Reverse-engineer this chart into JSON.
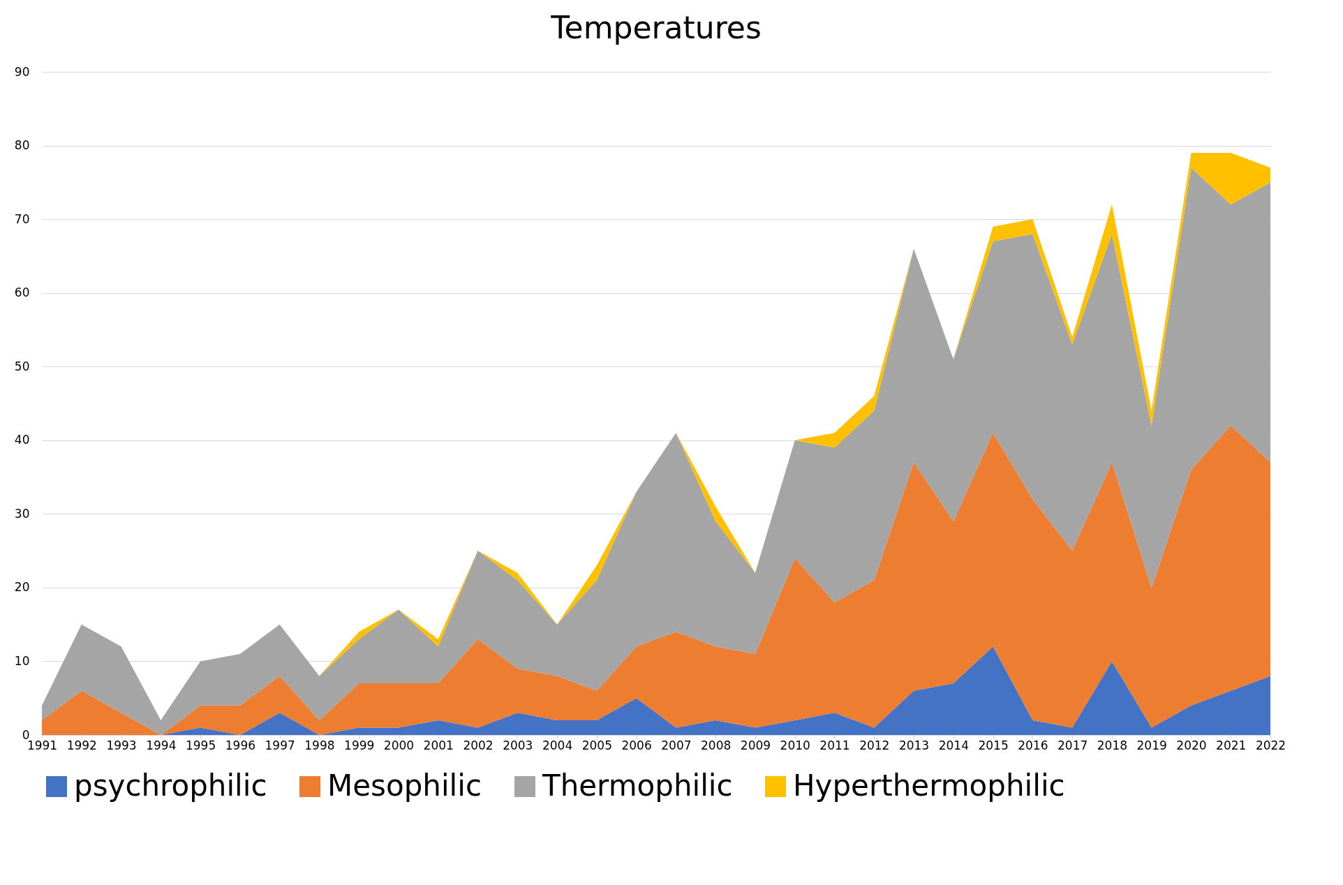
{
  "chart_data": {
    "type": "area",
    "title": "Temperatures",
    "stacked": true,
    "categories": [
      "1991",
      "1992",
      "1993",
      "1994",
      "1995",
      "1996",
      "1997",
      "1998",
      "1999",
      "2000",
      "2001",
      "2002",
      "2003",
      "2004",
      "2005",
      "2006",
      "2007",
      "2008",
      "2009",
      "2010",
      "2011",
      "2012",
      "2013",
      "2014",
      "2015",
      "2016",
      "2017",
      "2018",
      "2019",
      "2020",
      "2021",
      "2022"
    ],
    "series": [
      {
        "name": "psychrophilic",
        "color": "#4472c4",
        "values": [
          0,
          0,
          0,
          0,
          1,
          0,
          3,
          0,
          1,
          1,
          2,
          1,
          3,
          2,
          2,
          5,
          1,
          2,
          1,
          2,
          3,
          1,
          6,
          7,
          12,
          2,
          1,
          10,
          1,
          4,
          6,
          8
        ]
      },
      {
        "name": "Mesophilic",
        "color": "#ed7d31",
        "values": [
          2,
          6,
          3,
          0,
          3,
          4,
          5,
          2,
          6,
          6,
          5,
          12,
          6,
          6,
          4,
          7,
          13,
          10,
          10,
          22,
          15,
          20,
          31,
          22,
          29,
          30,
          24,
          27,
          19,
          32,
          36,
          29
        ]
      },
      {
        "name": "Thermophilic",
        "color": "#a5a5a5",
        "values": [
          2,
          9,
          9,
          2,
          6,
          7,
          7,
          6,
          6,
          10,
          5,
          12,
          12,
          7,
          15,
          21,
          27,
          17,
          11,
          16,
          21,
          23,
          29,
          22,
          26,
          36,
          28,
          31,
          22,
          41,
          30,
          38
        ]
      },
      {
        "name": "Hyperthermophilic",
        "color": "#ffc000",
        "values": [
          0,
          0,
          0,
          0,
          0,
          0,
          0,
          0,
          1,
          0,
          1,
          0,
          1,
          0,
          2,
          0,
          0,
          2,
          0,
          0,
          2,
          2,
          0,
          0,
          2,
          2,
          1,
          4,
          2,
          2,
          7,
          2
        ]
      }
    ],
    "ylim": [
      0,
      90
    ],
    "yticks": [
      0,
      10,
      20,
      30,
      40,
      50,
      60,
      70,
      80,
      90
    ],
    "grid": "y",
    "legend": "bottom"
  }
}
